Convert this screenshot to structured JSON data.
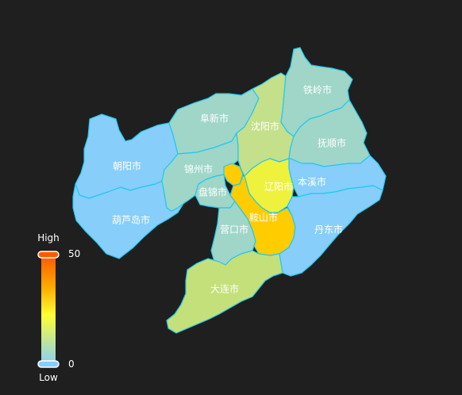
{
  "visual_map": {
    "max_label": "High",
    "min_label": "Low",
    "max_value": "50",
    "min_value": "0",
    "colors": [
      "#50a3ba",
      "#eac736",
      "#d94e5d"
    ]
  },
  "regions": [
    {
      "id": "tieling",
      "name": "铁岭市",
      "color": "#9fd6c7"
    },
    {
      "id": "fuxin",
      "name": "阜新市",
      "color": "#9fd6c7"
    },
    {
      "id": "shenyang",
      "name": "沈阳市",
      "color": "#c4e08a"
    },
    {
      "id": "fushun",
      "name": "抚顺市",
      "color": "#9fd6c7"
    },
    {
      "id": "chaoyang",
      "name": "朝阳市",
      "color": "#87cefa"
    },
    {
      "id": "jinzhou",
      "name": "锦州市",
      "color": "#9fd6c7"
    },
    {
      "id": "liaoyang",
      "name": "辽阳市",
      "color": "#eef23c"
    },
    {
      "id": "benxi",
      "name": "本溪市",
      "color": "#87cefa"
    },
    {
      "id": "panjin",
      "name": "盘锦市",
      "color": "#9fd6c7"
    },
    {
      "id": "huludao",
      "name": "葫芦岛市",
      "color": "#87cefa"
    },
    {
      "id": "anshan",
      "name": "鞍山市",
      "color": "#ffcc00"
    },
    {
      "id": "yingkou",
      "name": "营口市",
      "color": "#9fd6c7"
    },
    {
      "id": "dandong",
      "name": "丹东市",
      "color": "#87cefa"
    },
    {
      "id": "dalian",
      "name": "大连市",
      "color": "#c4e07a"
    }
  ]
}
